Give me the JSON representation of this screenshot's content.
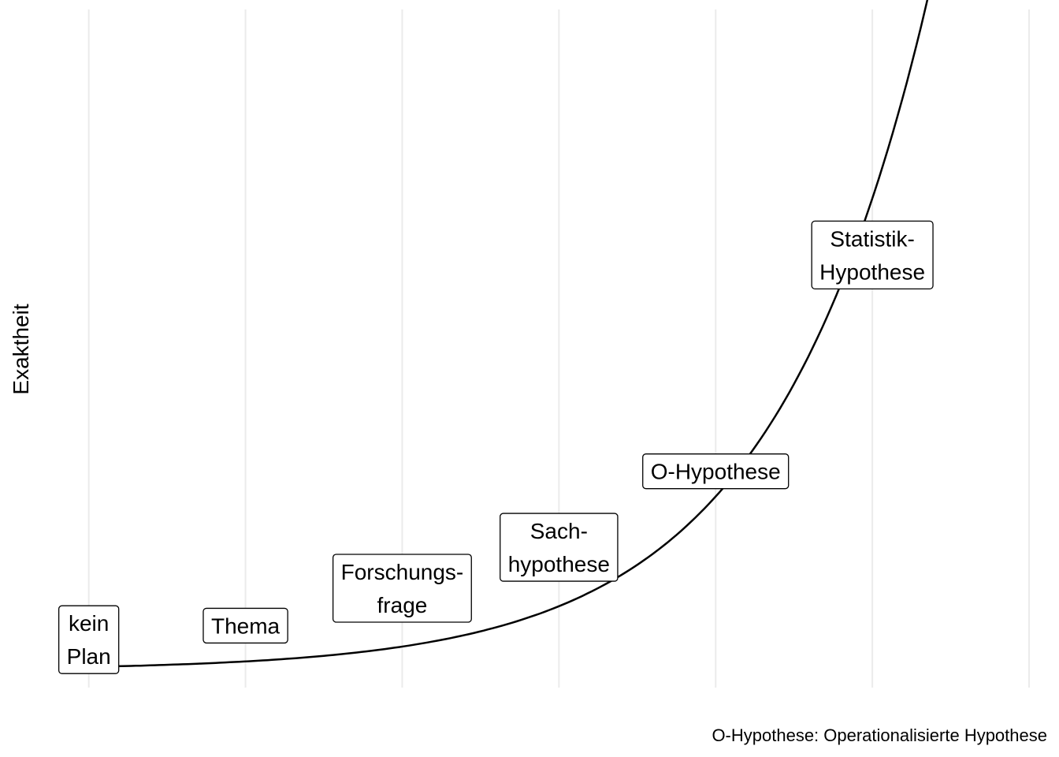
{
  "chart_data": {
    "type": "line",
    "title": "",
    "xlabel": "",
    "ylabel": "Exaktheit",
    "caption": "O-Hypothese: Operationalisierte Hypothese",
    "xlim": [
      0.7,
      7.0
    ],
    "ylim": [
      -0.1,
      11.5
    ],
    "grid": {
      "vertical": true,
      "horizontal": false
    },
    "curve": {
      "x0": 1,
      "x1": 7,
      "a": 0.02,
      "b": 1.0,
      "c": 0.2
    },
    "points": [
      {
        "x": 1,
        "y": 0.72,
        "label": [
          "kein",
          "Plan"
        ]
      },
      {
        "x": 2,
        "y": 0.96,
        "label": [
          "Thema"
        ]
      },
      {
        "x": 3,
        "y": 1.6,
        "label": [
          "Forschungs-",
          "frage"
        ]
      },
      {
        "x": 4,
        "y": 2.3,
        "label": [
          "Sach-",
          "hypothese"
        ]
      },
      {
        "x": 5,
        "y": 3.6,
        "label": [
          "O-Hypothese"
        ]
      },
      {
        "x": 6,
        "y": 7.3,
        "label": [
          "Statistik-",
          "Hypothese"
        ]
      }
    ]
  }
}
